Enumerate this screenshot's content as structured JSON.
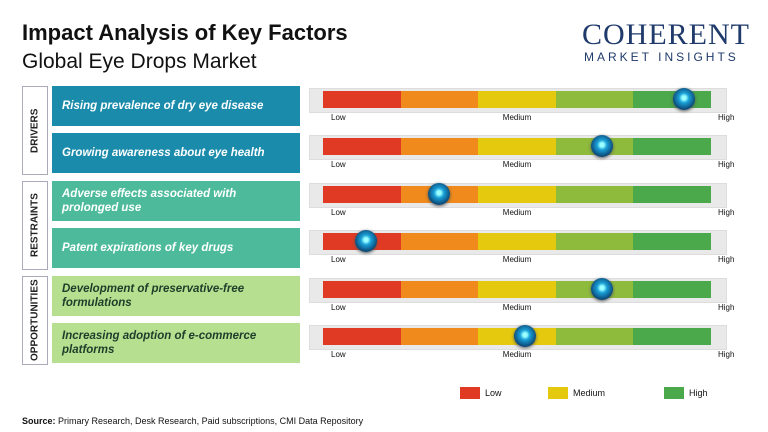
{
  "header": {
    "title": "Impact Analysis of Key Factors",
    "subtitle": "Global Eye Drops Market",
    "logo_main": "COHERENT",
    "logo_sub": "MARKET INSIGHTS"
  },
  "chart_data": {
    "type": "rating",
    "scale": {
      "lim": [
        0,
        10
      ],
      "ticks": [
        {
          "value": 0,
          "label": "Low"
        },
        {
          "value": 5,
          "label": "Medium"
        },
        {
          "value": 10,
          "label": "High"
        }
      ]
    },
    "segment_colors": [
      "#e03a25",
      "#f08a1c",
      "#e4c90f",
      "#8fbb3c",
      "#4ba84b"
    ],
    "groups": [
      {
        "name": "DRIVERS",
        "color": "#1b8bab",
        "text_color": "#ffffff",
        "factors": [
          {
            "label": "Rising prevalence of dry eye disease",
            "impact": 9.3
          },
          {
            "label": "Growing awareness about eye health",
            "impact": 7.2
          }
        ]
      },
      {
        "name": "RESTRAINTS",
        "color": "#4dbb9b",
        "text_color": "#ffffff",
        "factors": [
          {
            "label": "Adverse effects associated with prolonged use",
            "impact": 3.0
          },
          {
            "label": "Patent expirations of key drugs",
            "impact": 1.1
          }
        ]
      },
      {
        "name": "OPPORTUNITIES",
        "color": "#b6e08f",
        "text_color": "#1e3d2a",
        "factors": [
          {
            "label": "Development of preservative-free formulations",
            "impact": 7.2
          },
          {
            "label": "Increasing adoption of e-commerce platforms",
            "impact": 5.2
          }
        ]
      }
    ],
    "legend": [
      {
        "name": "Low",
        "color": "#e03a25"
      },
      {
        "name": "Medium",
        "color": "#e4c90f"
      },
      {
        "name": "High",
        "color": "#4ba84b"
      }
    ]
  },
  "footer": {
    "source_label": "Source:",
    "source": "Primary Research, Desk Research, Paid subscriptions, CMI Data Repository"
  }
}
